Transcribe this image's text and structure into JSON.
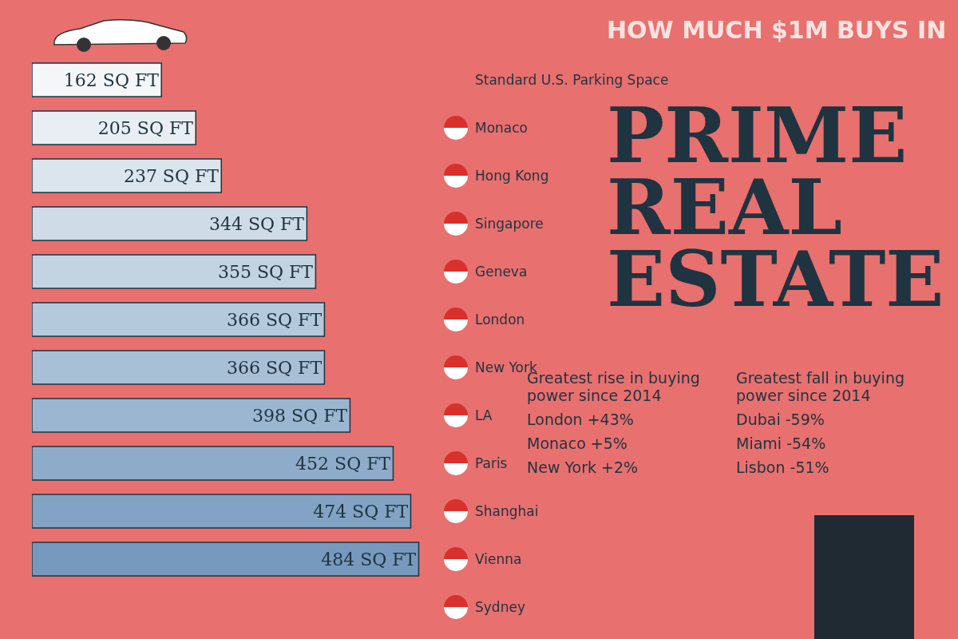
{
  "chart_data": {
    "type": "bar",
    "orientation": "horizontal",
    "title": "PRIME REAL ESTATE",
    "subtitle": "HOW MUCH $1M BUYS IN",
    "categories": [
      "Standard U.S. Parking Space",
      "Monaco",
      "Hong Kong",
      "Singapore",
      "Geneva",
      "London",
      "New York",
      "LA",
      "Paris",
      "Shanghai",
      "Vienna",
      "Sydney"
    ],
    "values": [
      162,
      205,
      237,
      344,
      355,
      366,
      366,
      398,
      452,
      474,
      484,
      null
    ],
    "value_labels": [
      "162 SQ FT",
      "205 SQ FT",
      "237 SQ FT",
      "344 SQ FT",
      "355 SQ FT",
      "366 SQ FT",
      "366 SQ FT",
      "398 SQ FT",
      "452 SQ FT",
      "474 SQ FT",
      "484 SQ FT",
      null
    ],
    "colors": [
      "#f4f6f8",
      "#e8eef3",
      "#dbe5ee",
      "#cfdce8",
      "#c2d3e2",
      "#b5c9dc",
      "#a8c0d6",
      "#9bb6d0",
      "#8eacc9",
      "#82a3c3",
      "#7799bd",
      "#6d90b6"
    ],
    "tick_labels": "y",
    "legend": false,
    "annotations": [
      "Greatest rise in buying power since 2014",
      "London +43%",
      "Monaco +5%",
      "New York +2%",
      "Greatest fall in buying power since 2014",
      "Dubai -59%",
      "Miami -54%",
      "Lisbon -51%"
    ]
  }
}
